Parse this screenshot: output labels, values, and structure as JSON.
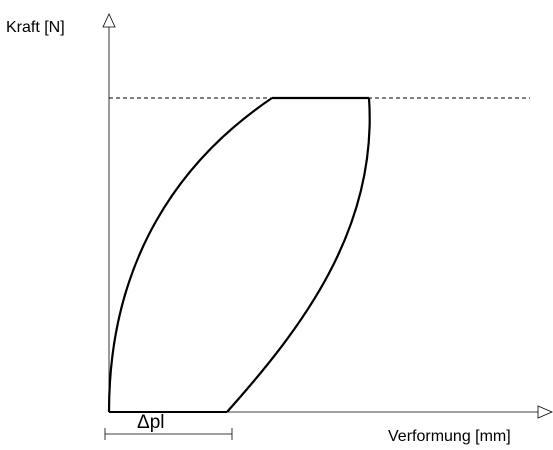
{
  "diagram": {
    "y_axis_label": "Kraft [N]",
    "x_axis_label": "Verformung [mm]",
    "delta_label": "Δpl"
  },
  "colors": {
    "line": "#000000",
    "background": "#ffffff"
  }
}
